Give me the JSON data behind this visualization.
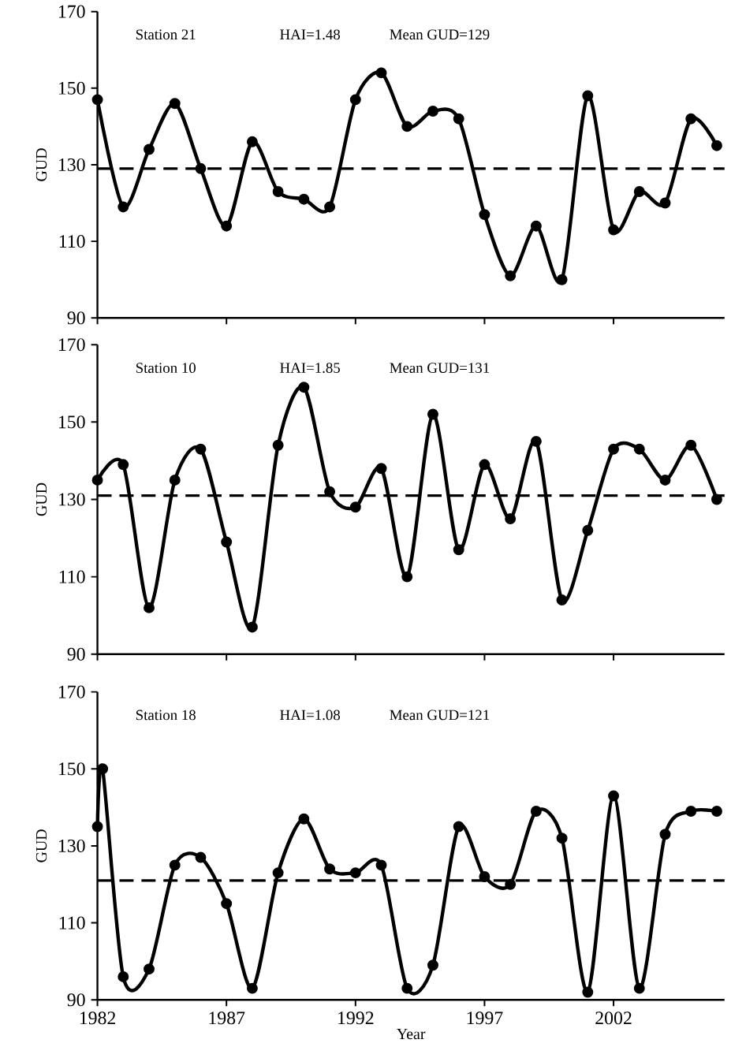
{
  "chart_data": [
    {
      "type": "line",
      "ylabel": "GUD",
      "annotations": [
        "Station 21",
        "HAI=1.48",
        "Mean GUD=129"
      ],
      "x": [
        1982,
        1983,
        1984,
        1985,
        1986,
        1987,
        1988,
        1989,
        1990,
        1991,
        1992,
        1993,
        1994,
        1995,
        1996,
        1997,
        1998,
        1999,
        2000,
        2001,
        2002,
        2003,
        2004,
        2005,
        2006
      ],
      "series": [
        {
          "color": "#000000",
          "values": [
            147,
            119,
            134,
            146,
            129,
            114,
            136,
            123,
            121,
            119,
            147,
            154,
            140,
            144,
            142,
            117,
            101,
            114,
            100,
            148,
            113,
            123,
            120,
            142,
            135
          ]
        }
      ],
      "xlim": [
        1982,
        2006.3
      ],
      "xticks": [
        1982,
        1987,
        1992,
        1997,
        2002
      ],
      "ylim": [
        90,
        170
      ],
      "yticks": [
        90,
        110,
        130,
        150,
        170
      ],
      "ref_lines": [
        {
          "axis": "y",
          "value": 129,
          "line_style": "dashed",
          "color": "#000000"
        }
      ],
      "marker": "circle",
      "line_style": "solid",
      "grid": false,
      "tick_labels": "y"
    },
    {
      "type": "line",
      "ylabel": "GUD",
      "annotations": [
        "Station 10",
        "HAI=1.85",
        "Mean GUD=131"
      ],
      "x": [
        1982,
        1983,
        1984,
        1985,
        1986,
        1987,
        1988,
        1989,
        1990,
        1991,
        1992,
        1993,
        1994,
        1995,
        1996,
        1997,
        1998,
        1999,
        2000,
        2001,
        2002,
        2003,
        2004,
        2005,
        2006
      ],
      "series": [
        {
          "color": "#000000",
          "values": [
            135,
            139,
            102,
            135,
            143,
            119,
            97,
            144,
            159,
            132,
            128,
            138,
            110,
            152,
            117,
            139,
            125,
            145,
            104,
            122,
            143,
            143,
            135,
            144,
            130
          ]
        }
      ],
      "xlim": [
        1982,
        2006.3
      ],
      "xticks": [
        1982,
        1987,
        1992,
        1997,
        2002
      ],
      "ylim": [
        90,
        170
      ],
      "yticks": [
        90,
        110,
        130,
        150,
        170
      ],
      "ref_lines": [
        {
          "axis": "y",
          "value": 131,
          "line_style": "dashed",
          "color": "#000000"
        }
      ],
      "marker": "circle",
      "line_style": "solid",
      "grid": false,
      "tick_labels": "y"
    },
    {
      "type": "line",
      "xlabel": "Year",
      "ylabel": "GUD",
      "annotations": [
        "Station 18",
        "HAI=1.08",
        "Mean GUD=121"
      ],
      "x": [
        1982,
        1982.2,
        1983,
        1984,
        1985,
        1986,
        1987,
        1988,
        1989,
        1990,
        1991,
        1992,
        1993,
        1994,
        1995,
        1996,
        1997,
        1998,
        1999,
        2000,
        2001,
        2002,
        2003,
        2004,
        2005,
        2006
      ],
      "series": [
        {
          "color": "#000000",
          "values": [
            135,
            150,
            96,
            98,
            125,
            127,
            115,
            93,
            123,
            137,
            124,
            123,
            125,
            93,
            99,
            135,
            122,
            120,
            139,
            132,
            92,
            143,
            93,
            133,
            139,
            139
          ]
        }
      ],
      "xlim": [
        1982,
        2006.3
      ],
      "xticks": [
        1982,
        1987,
        1992,
        1997,
        2002
      ],
      "ylim": [
        90,
        170
      ],
      "yticks": [
        90,
        110,
        130,
        150,
        170
      ],
      "ref_lines": [
        {
          "axis": "y",
          "value": 121,
          "line_style": "dashed",
          "color": "#000000"
        }
      ],
      "marker": "circle",
      "line_style": "solid",
      "grid": false
    }
  ]
}
